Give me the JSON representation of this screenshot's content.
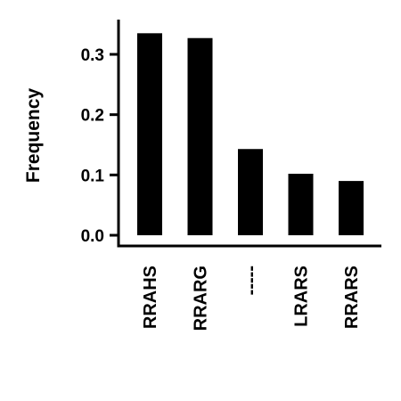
{
  "chart_data": {
    "type": "bar",
    "categories": [
      "RRAHS",
      "RRARG",
      "-----",
      "LRARS",
      "RRARS"
    ],
    "values": [
      0.335,
      0.327,
      0.143,
      0.102,
      0.09
    ],
    "xlabel": "",
    "ylabel": "Frequency",
    "ylim": [
      0,
      0.35
    ],
    "yticks": [
      "0.0",
      "0.1",
      "0.2",
      "0.3"
    ],
    "grid": false,
    "bar_color": "#000000"
  }
}
